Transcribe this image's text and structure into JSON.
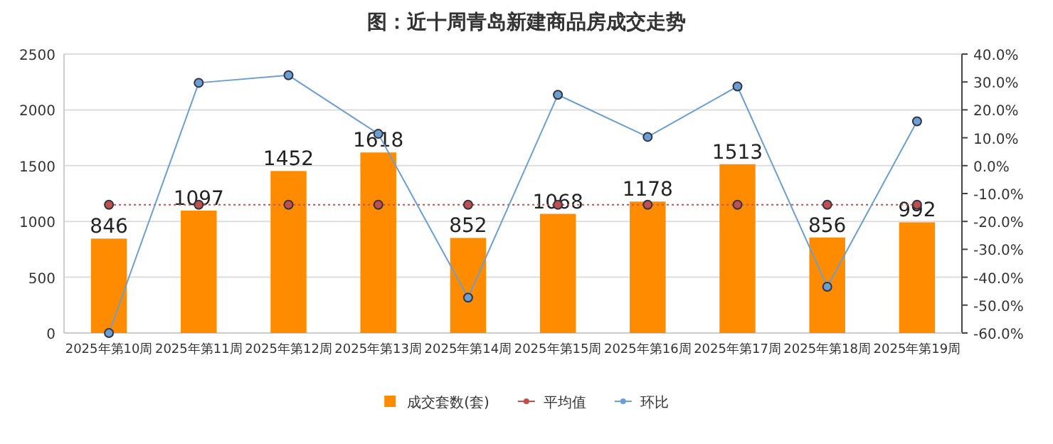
{
  "chart_data": {
    "type": "bar",
    "title": "图：近十周青岛新建商品房成交走势",
    "categories": [
      "2025年第10周",
      "2025年第11周",
      "2025年第12周",
      "2025年第13周",
      "2025年第14周",
      "2025年第15周",
      "2025年第16周",
      "2025年第17周",
      "2025年第18周",
      "2025年第19周"
    ],
    "series": [
      {
        "name": "成交套数(套)",
        "color": "#ff8c00",
        "values": [
          846,
          1097,
          1452,
          1618,
          852,
          1068,
          1178,
          1513,
          856,
          992
        ],
        "value_labels": [
          "846",
          "1097",
          "1452",
          "1618",
          "852",
          "1068",
          "1178",
          "1513",
          "856",
          "992"
        ]
      },
      {
        "name": "平均值",
        "type": "line",
        "color": "#c0504d",
        "line_style": "dotted",
        "marker": "circle",
        "values": [
          1150,
          1150,
          1150,
          1150,
          1150,
          1150,
          1150,
          1150,
          1150,
          1150
        ]
      },
      {
        "name": "环比",
        "type": "line",
        "axis": "y2",
        "color": "#6b9fd1",
        "line_style": "solid",
        "marker": "circle",
        "values": [
          -60,
          29.7,
          32.4,
          11.4,
          -47.3,
          25.4,
          10.3,
          28.4,
          -43.4,
          15.9
        ]
      }
    ],
    "ylim": [
      0,
      2500
    ],
    "yticks": [
      0,
      500,
      1000,
      1500,
      2000,
      2500
    ],
    "y2lim": [
      -60,
      40
    ],
    "y2ticks": [
      {
        "value": -60,
        "label": "-60.0%"
      },
      {
        "value": -50,
        "label": "-50.0%"
      },
      {
        "value": -40,
        "label": "-40.0%"
      },
      {
        "value": -30,
        "label": "-30.0%"
      },
      {
        "value": -20,
        "label": "-20.0%"
      },
      {
        "value": -10,
        "label": "-10.0%"
      },
      {
        "value": 0,
        "label": "0.0%"
      },
      {
        "value": 10,
        "label": "10.0%"
      },
      {
        "value": 20,
        "label": "20.0%"
      },
      {
        "value": 30,
        "label": "30.0%"
      },
      {
        "value": 40,
        "label": "40.0%"
      }
    ],
    "grid": "y",
    "legend": "bottom"
  }
}
